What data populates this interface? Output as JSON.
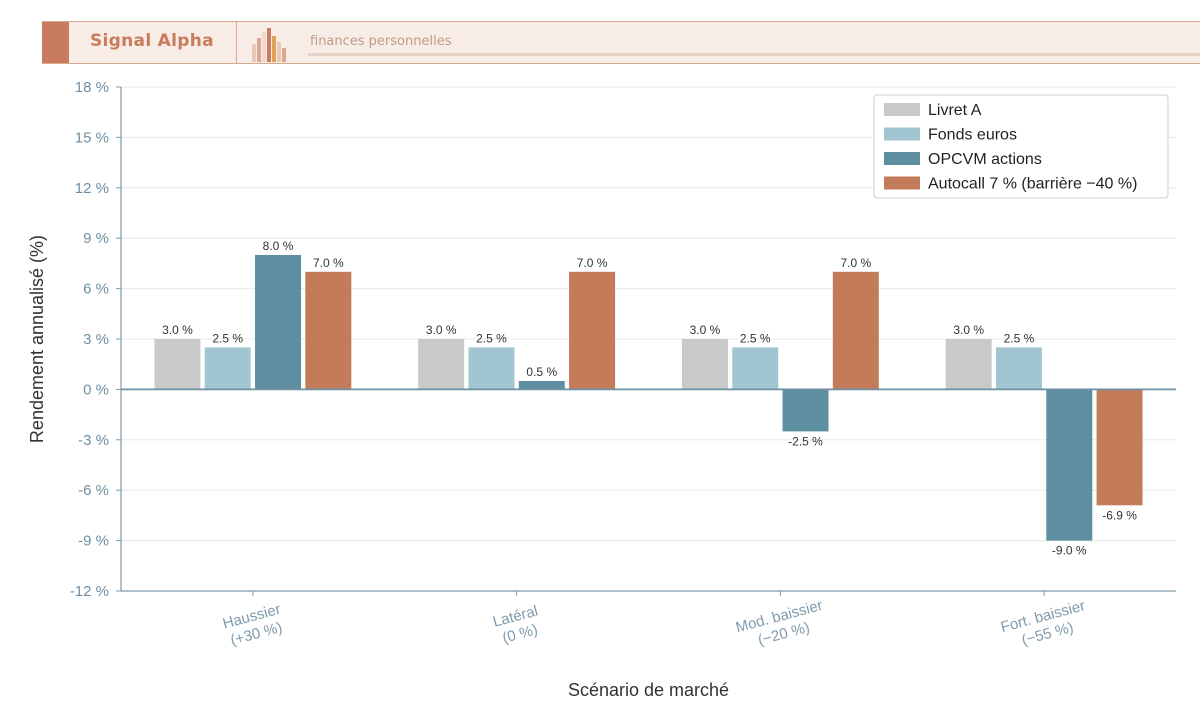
{
  "header": {
    "brand": "Signal Alpha",
    "tagline": "finances personnelles",
    "accent_color": "#c97c5d"
  },
  "chart_data": {
    "type": "bar",
    "categories": [
      [
        "Haussier",
        "(+30 %)"
      ],
      [
        "Latéral",
        "(0 %)"
      ],
      [
        "Mod. baissier",
        "(−20 %)"
      ],
      [
        "Fort. baissier",
        "(−55 %)"
      ]
    ],
    "series": [
      {
        "name": "Livret A",
        "color": "#c9c9c9",
        "values": [
          3.0,
          3.0,
          3.0,
          3.0
        ],
        "labels": [
          "3.0 %",
          "3.0 %",
          "3.0 %",
          "3.0 %"
        ]
      },
      {
        "name": "Fonds euros",
        "color": "#a2c6d1",
        "values": [
          2.5,
          2.5,
          2.5,
          2.5
        ],
        "labels": [
          "2.5 %",
          "2.5 %",
          "2.5 %",
          "2.5 %"
        ]
      },
      {
        "name": "OPCVM actions",
        "color": "#5d8fa1",
        "values": [
          8.0,
          0.5,
          -2.5,
          -9.0
        ],
        "labels": [
          "8.0 %",
          "0.5 %",
          "-2.5 %",
          "-9.0 %"
        ]
      },
      {
        "name": "Autocall 7 % (barrière −40 %)",
        "color": "#c47b5a",
        "values": [
          7.0,
          7.0,
          7.0,
          -6.9
        ],
        "labels": [
          "7.0 %",
          "7.0 %",
          "7.0 %",
          "-6.9 %"
        ]
      }
    ],
    "xlabel": "Scénario de marché",
    "ylabel": "Rendement annualisé (%)",
    "ylim": [
      -12,
      18
    ],
    "yticks": [
      -12,
      -9,
      -6,
      -3,
      0,
      3,
      6,
      9,
      12,
      15,
      18
    ],
    "ytick_labels": [
      "-12 %",
      "-9 %",
      "-6 %",
      "-3 %",
      "0 %",
      "3 %",
      "6 %",
      "9 %",
      "12 %",
      "15 %",
      "18 %"
    ],
    "grid": "horizontal",
    "legend_position": "top-right"
  }
}
